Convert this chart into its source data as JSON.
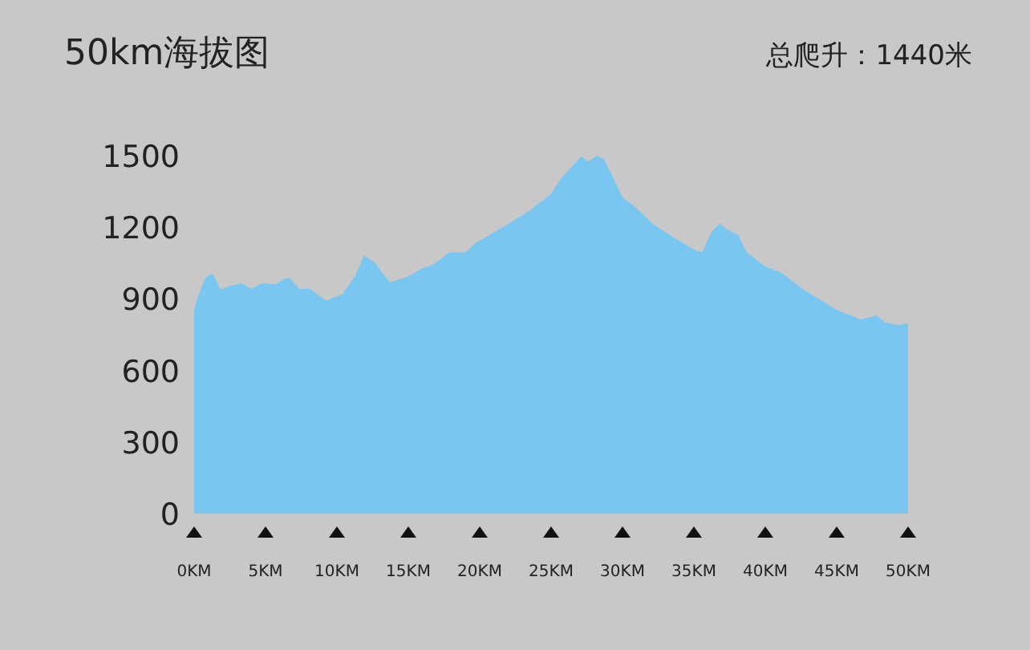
{
  "chart_data": {
    "type": "area",
    "title": "50km海拔图",
    "annotations": [
      "总爬升：1440米"
    ],
    "x": [
      0,
      0.26,
      0.82,
      1.27,
      1.57,
      1.83,
      2.5,
      3.33,
      4.0,
      4.75,
      5.69,
      6.3,
      6.7,
      7.37,
      8.1,
      9.25,
      10.4,
      11.3,
      11.9,
      12.6,
      13.7,
      14.9,
      16.0,
      16.7,
      17.9,
      19.0,
      19.7,
      21.6,
      23.5,
      25.0,
      25.7,
      26.7,
      27.1,
      27.6,
      28.2,
      28.7,
      29.3,
      30.0,
      30.8,
      32.1,
      33.6,
      35.1,
      35.6,
      36.2,
      36.8,
      37.5,
      38.1,
      38.7,
      40.0,
      41.1,
      42.6,
      45.0,
      46.7,
      47.8,
      48.4,
      49.3,
      50.0
    ],
    "values": [
      853,
      908,
      991,
      1005,
      976,
      938,
      954,
      965,
      942,
      965,
      960,
      983,
      987,
      942,
      942,
      893,
      920,
      998,
      1081,
      1054,
      969,
      991,
      1028,
      1043,
      1095,
      1095,
      1133,
      1200,
      1270,
      1340,
      1405,
      1469,
      1497,
      1476,
      1500,
      1485,
      1413,
      1324,
      1290,
      1215,
      1156,
      1104,
      1095,
      1178,
      1215,
      1184,
      1167,
      1095,
      1036,
      1010,
      942,
      853,
      814,
      830,
      801,
      790,
      797
    ],
    "color": "#79c6f0",
    "xlim": [
      0,
      50
    ],
    "ylim": [
      0,
      1500
    ],
    "xticks": [
      {
        "value": 0,
        "label": "0KM"
      },
      {
        "value": 5,
        "label": "5KM"
      },
      {
        "value": 10,
        "label": "10KM"
      },
      {
        "value": 15,
        "label": "15KM"
      },
      {
        "value": 20,
        "label": "20KM"
      },
      {
        "value": 25,
        "label": "25KM"
      },
      {
        "value": 30,
        "label": "30KM"
      },
      {
        "value": 35,
        "label": "35KM"
      },
      {
        "value": 40,
        "label": "40KM"
      },
      {
        "value": 45,
        "label": "45KM"
      },
      {
        "value": 50,
        "label": "50KM"
      }
    ],
    "yticks": [
      0,
      300,
      600,
      900,
      1200,
      1500
    ]
  }
}
